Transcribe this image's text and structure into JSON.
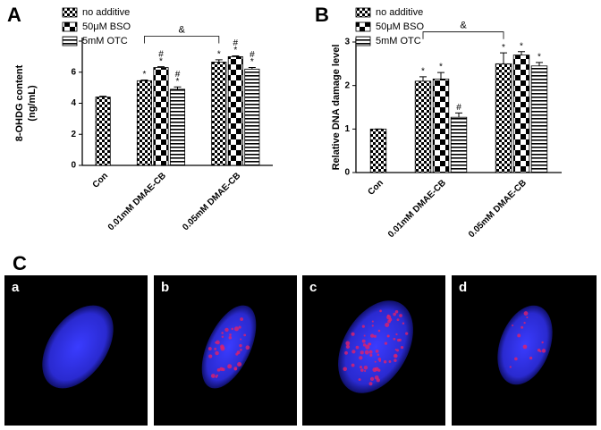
{
  "chart_data": [
    {
      "type": "bar",
      "panel_label": "A",
      "ylabel": [
        "8-OHDG content",
        "(ng/mL)"
      ],
      "categories": [
        "Con",
        "0.01mM DMAE-CB",
        "0.05mM DMAE-CB"
      ],
      "series": [
        {
          "name": "no additive",
          "pattern": "fine-check",
          "values": [
            4.4,
            5.45,
            6.65
          ],
          "errors": [
            0.05,
            0.05,
            0.15
          ],
          "markers": [
            null,
            [
              "*"
            ],
            [
              "*"
            ]
          ]
        },
        {
          "name": "50μM BSO",
          "pattern": "big-check",
          "values": [
            null,
            6.3,
            7.0
          ],
          "errors": [
            null,
            0.05,
            0.05
          ],
          "markers": [
            null,
            [
              "#",
              "*"
            ],
            [
              "#",
              "*"
            ]
          ]
        },
        {
          "name": "5mM OTC",
          "pattern": "stripes",
          "values": [
            null,
            4.9,
            6.2
          ],
          "errors": [
            null,
            0.15,
            0.1
          ],
          "markers": [
            null,
            [
              "#",
              "*"
            ],
            [
              "#",
              "*"
            ]
          ]
        }
      ],
      "bracket_label": "&",
      "ylim": [
        0,
        8
      ],
      "yticks": [
        0,
        2,
        4,
        6,
        8
      ],
      "grid": false
    },
    {
      "type": "bar",
      "panel_label": "B",
      "ylabel": [
        "Relative DNA damage level"
      ],
      "categories": [
        "Con",
        "0.01mM DMAE-CB",
        "0.05mM DMAE-CB"
      ],
      "series": [
        {
          "name": "no additive",
          "pattern": "fine-check",
          "values": [
            1.0,
            2.1,
            2.5
          ],
          "errors": [
            0,
            0.1,
            0.25
          ],
          "markers": [
            null,
            [
              "*"
            ],
            [
              "*"
            ]
          ]
        },
        {
          "name": "50μM BSO",
          "pattern": "big-check",
          "values": [
            null,
            2.15,
            2.7
          ],
          "errors": [
            null,
            0.15,
            0.08
          ],
          "markers": [
            null,
            [
              "*"
            ],
            [
              "*"
            ]
          ]
        },
        {
          "name": "5mM OTC",
          "pattern": "stripes",
          "values": [
            null,
            1.27,
            2.45
          ],
          "errors": [
            null,
            0.1,
            0.08
          ],
          "markers": [
            null,
            [
              "#"
            ],
            [
              "*"
            ]
          ]
        }
      ],
      "bracket_label": "&",
      "ylim": [
        0,
        3
      ],
      "yticks": [
        0,
        1,
        2,
        3
      ],
      "grid": false
    }
  ],
  "panel_c": {
    "label": "C",
    "images": [
      "a",
      "b",
      "c",
      "d"
    ]
  }
}
